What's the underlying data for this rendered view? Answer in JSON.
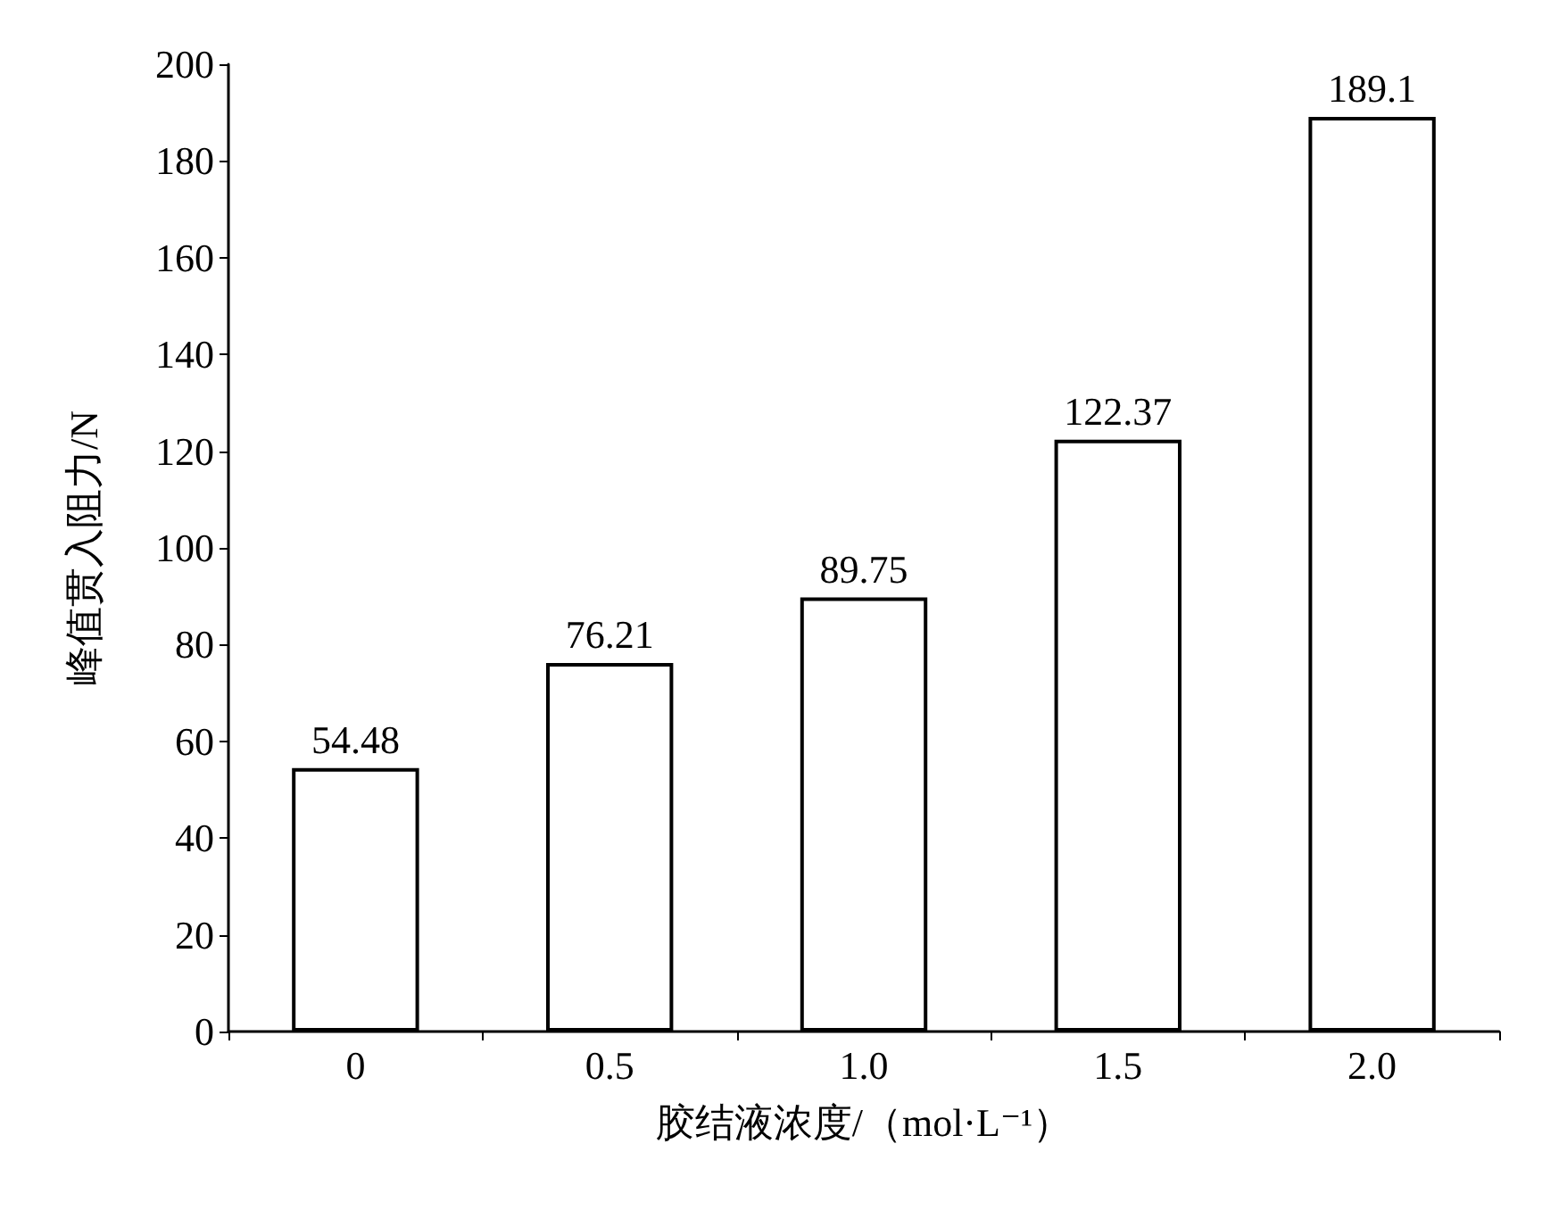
{
  "chart_data": {
    "type": "bar",
    "xlabel": "胶结液浓度/（mol·L⁻¹）",
    "ylabel": "峰值贯入阻力/N",
    "categories": [
      "0",
      "0.5",
      "1.0",
      "1.5",
      "2.0"
    ],
    "values": [
      54.48,
      76.21,
      89.75,
      122.37,
      189.1
    ],
    "color": "#ffffff",
    "ylim": [
      0,
      200
    ],
    "yticks": [
      0,
      20,
      40,
      60,
      80,
      100,
      120,
      140,
      160,
      180,
      200
    ],
    "data_labels": true,
    "grid": false
  }
}
